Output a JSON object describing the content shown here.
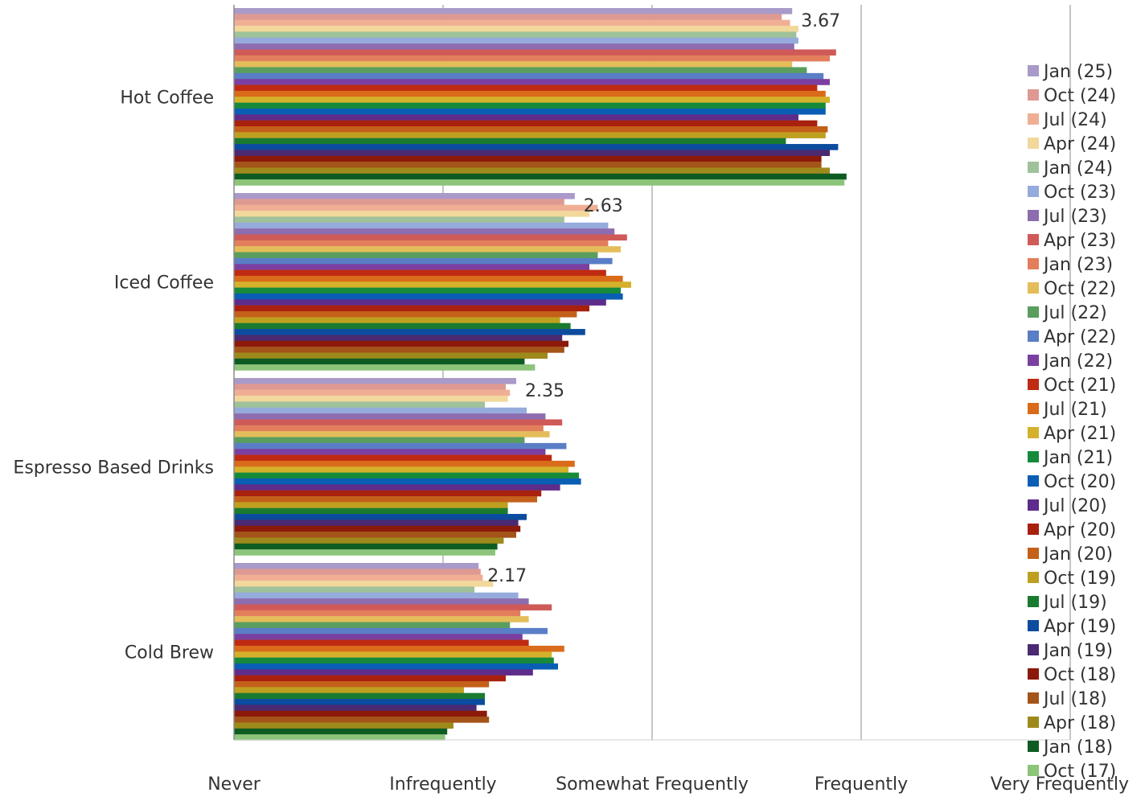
{
  "chart_data": {
    "type": "bar",
    "orientation": "horizontal",
    "x_ticks": [
      "Never",
      "Infrequently",
      "Somewhat  Frequently",
      "Frequently",
      "Very Frequently"
    ],
    "xlim": [
      1,
      5
    ],
    "grid": "vertical",
    "legend_position": "right",
    "categories": [
      "Hot Coffee",
      "Iced Coffee",
      "Espresso Based Drinks",
      "Cold Brew"
    ],
    "data_labels": [
      "3.67",
      "2.63",
      "2.35",
      "2.17"
    ],
    "series": [
      {
        "name": "Jan (25)",
        "color": "#A99AC9",
        "values": [
          3.67,
          2.63,
          2.35,
          2.17
        ]
      },
      {
        "name": "Oct (24)",
        "color": "#DE9A92",
        "values": [
          3.62,
          2.58,
          2.3,
          2.18
        ]
      },
      {
        "name": "Jul (24)",
        "color": "#F0AF94",
        "values": [
          3.66,
          2.74,
          2.32,
          2.19
        ]
      },
      {
        "name": "Apr (24)",
        "color": "#F2D89C",
        "values": [
          3.7,
          2.7,
          2.31,
          2.24
        ]
      },
      {
        "name": "Jan (24)",
        "color": "#9FC29A",
        "values": [
          3.69,
          2.58,
          2.2,
          2.15
        ]
      },
      {
        "name": "Oct (23)",
        "color": "#95ABDC",
        "values": [
          3.7,
          2.79,
          2.4,
          2.36
        ]
      },
      {
        "name": "Jul (23)",
        "color": "#8D6DB0",
        "values": [
          3.68,
          2.82,
          2.49,
          2.41
        ]
      },
      {
        "name": "Apr (23)",
        "color": "#CF5A58",
        "values": [
          3.88,
          2.88,
          2.57,
          2.52
        ]
      },
      {
        "name": "Jan (23)",
        "color": "#E37E5C",
        "values": [
          3.85,
          2.79,
          2.48,
          2.37
        ]
      },
      {
        "name": "Oct (22)",
        "color": "#E4BD5A",
        "values": [
          3.67,
          2.85,
          2.51,
          2.41
        ]
      },
      {
        "name": "Jul (22)",
        "color": "#5A9E5E",
        "values": [
          3.74,
          2.74,
          2.39,
          2.32
        ]
      },
      {
        "name": "Apr (22)",
        "color": "#5A7EC6",
        "values": [
          3.82,
          2.81,
          2.59,
          2.5
        ]
      },
      {
        "name": "Jan (22)",
        "color": "#7A3FA1",
        "values": [
          3.85,
          2.7,
          2.49,
          2.38
        ]
      },
      {
        "name": "Oct (21)",
        "color": "#BF2A12",
        "values": [
          3.79,
          2.78,
          2.52,
          2.41
        ]
      },
      {
        "name": "Jul (21)",
        "color": "#D96B1A",
        "values": [
          3.83,
          2.86,
          2.63,
          2.58
        ]
      },
      {
        "name": "Apr (21)",
        "color": "#D4B12A",
        "values": [
          3.85,
          2.9,
          2.6,
          2.52
        ]
      },
      {
        "name": "Jan (21)",
        "color": "#168A3A",
        "values": [
          3.83,
          2.85,
          2.65,
          2.53
        ]
      },
      {
        "name": "Oct (20)",
        "color": "#0A5EB4",
        "values": [
          3.83,
          2.86,
          2.66,
          2.55
        ]
      },
      {
        "name": "Jul (20)",
        "color": "#5E2C8A",
        "values": [
          3.7,
          2.78,
          2.56,
          2.43
        ]
      },
      {
        "name": "Apr (20)",
        "color": "#A8200E",
        "values": [
          3.79,
          2.7,
          2.47,
          2.3
        ]
      },
      {
        "name": "Jan (20)",
        "color": "#C4601A",
        "values": [
          3.84,
          2.64,
          2.45,
          2.22
        ]
      },
      {
        "name": "Oct (19)",
        "color": "#BEA020",
        "values": [
          3.83,
          2.56,
          2.31,
          2.1
        ]
      },
      {
        "name": "Jul (19)",
        "color": "#1A7A30",
        "values": [
          3.64,
          2.61,
          2.31,
          2.2
        ]
      },
      {
        "name": "Apr (19)",
        "color": "#0B4C9E",
        "values": [
          3.89,
          2.68,
          2.4,
          2.2
        ]
      },
      {
        "name": "Jan (19)",
        "color": "#4B2A72",
        "values": [
          3.85,
          2.57,
          2.36,
          2.16
        ]
      },
      {
        "name": "Oct (18)",
        "color": "#8C1A0A",
        "values": [
          3.81,
          2.6,
          2.37,
          2.21
        ]
      },
      {
        "name": "Jul (18)",
        "color": "#A45418",
        "values": [
          3.81,
          2.58,
          2.35,
          2.22
        ]
      },
      {
        "name": "Apr (18)",
        "color": "#9E8A1C",
        "values": [
          3.85,
          2.5,
          2.29,
          2.05
        ]
      },
      {
        "name": "Jan (18)",
        "color": "#0E5C22",
        "values": [
          3.93,
          2.39,
          2.26,
          2.02
        ]
      },
      {
        "name": "Oct (17)",
        "color": "#8CC47A",
        "values": [
          3.92,
          2.44,
          2.25,
          2.01
        ]
      }
    ]
  }
}
